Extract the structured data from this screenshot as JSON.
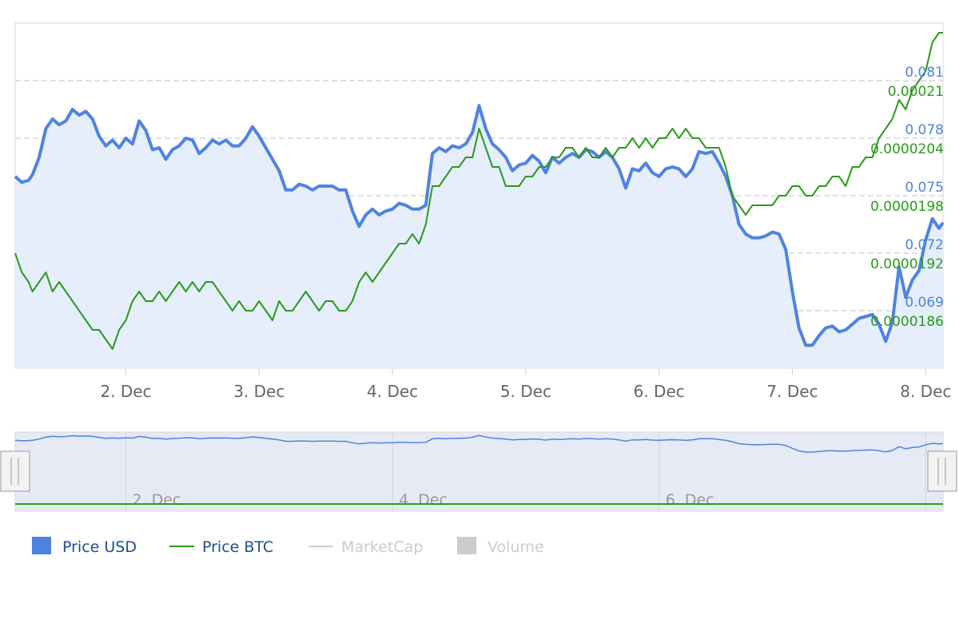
{
  "chart_data": {
    "type": "line",
    "x_ticks": [
      "2. Dec",
      "3. Dec",
      "4. Dec",
      "5. Dec",
      "6. Dec",
      "7. Dec",
      "8. Dec"
    ],
    "navigator_ticks": [
      "2. Dec",
      "4. Dec",
      "6. Dec"
    ],
    "y_axes": {
      "usd": {
        "ticks": [
          "0.081",
          "0.078",
          "0.075",
          "0.072",
          "0.069"
        ],
        "range": [
          0.066,
          0.084
        ]
      },
      "btc": {
        "ticks": [
          "0.00021",
          "0.0000204",
          "0.0000198",
          "0.0000192",
          "0.0000186"
        ],
        "range": [
          1.8e-05,
          2.16e-05
        ]
      }
    },
    "x_range": [
      1.17,
      8.13
    ],
    "grid": true,
    "legend_position": "bottom-left",
    "colors": {
      "usd": "#4f83e0",
      "btc": "#2a9a1a",
      "usd_area": "#e6eefb",
      "grid": "#d6d6d6"
    },
    "series": [
      {
        "name": "Price USD",
        "axis": "usd",
        "points": [
          [
            1.17,
            0.076
          ],
          [
            1.22,
            0.0757
          ],
          [
            1.27,
            0.0758
          ],
          [
            1.3,
            0.0761
          ],
          [
            1.35,
            0.077
          ],
          [
            1.4,
            0.0785
          ],
          [
            1.45,
            0.079
          ],
          [
            1.5,
            0.0787
          ],
          [
            1.55,
            0.0789
          ],
          [
            1.6,
            0.0795
          ],
          [
            1.65,
            0.0792
          ],
          [
            1.7,
            0.0794
          ],
          [
            1.75,
            0.079
          ],
          [
            1.8,
            0.0781
          ],
          [
            1.85,
            0.0776
          ],
          [
            1.9,
            0.0779
          ],
          [
            1.95,
            0.0775
          ],
          [
            2.0,
            0.078
          ],
          [
            2.05,
            0.0777
          ],
          [
            2.1,
            0.0789
          ],
          [
            2.15,
            0.0784
          ],
          [
            2.2,
            0.0774
          ],
          [
            2.25,
            0.0775
          ],
          [
            2.3,
            0.0769
          ],
          [
            2.35,
            0.0774
          ],
          [
            2.4,
            0.0776
          ],
          [
            2.45,
            0.078
          ],
          [
            2.5,
            0.0779
          ],
          [
            2.55,
            0.0772
          ],
          [
            2.6,
            0.0775
          ],
          [
            2.65,
            0.0779
          ],
          [
            2.7,
            0.0777
          ],
          [
            2.75,
            0.0779
          ],
          [
            2.8,
            0.0776
          ],
          [
            2.85,
            0.0776
          ],
          [
            2.9,
            0.078
          ],
          [
            2.95,
            0.0786
          ],
          [
            3.0,
            0.0781
          ],
          [
            3.05,
            0.0775
          ],
          [
            3.1,
            0.0769
          ],
          [
            3.15,
            0.0763
          ],
          [
            3.2,
            0.0753
          ],
          [
            3.25,
            0.0753
          ],
          [
            3.3,
            0.0756
          ],
          [
            3.35,
            0.0755
          ],
          [
            3.4,
            0.0753
          ],
          [
            3.45,
            0.0755
          ],
          [
            3.5,
            0.0755
          ],
          [
            3.55,
            0.0755
          ],
          [
            3.6,
            0.0753
          ],
          [
            3.65,
            0.0753
          ],
          [
            3.7,
            0.0742
          ],
          [
            3.75,
            0.0734
          ],
          [
            3.8,
            0.074
          ],
          [
            3.85,
            0.0743
          ],
          [
            3.9,
            0.074
          ],
          [
            3.95,
            0.0742
          ],
          [
            4.0,
            0.0743
          ],
          [
            4.05,
            0.0746
          ],
          [
            4.1,
            0.0745
          ],
          [
            4.15,
            0.0743
          ],
          [
            4.2,
            0.0743
          ],
          [
            4.25,
            0.0745
          ],
          [
            4.3,
            0.0772
          ],
          [
            4.35,
            0.0775
          ],
          [
            4.4,
            0.0773
          ],
          [
            4.45,
            0.0776
          ],
          [
            4.5,
            0.0775
          ],
          [
            4.55,
            0.0777
          ],
          [
            4.6,
            0.0783
          ],
          [
            4.65,
            0.0797
          ],
          [
            4.7,
            0.0785
          ],
          [
            4.75,
            0.0777
          ],
          [
            4.8,
            0.0774
          ],
          [
            4.85,
            0.077
          ],
          [
            4.9,
            0.0763
          ],
          [
            4.95,
            0.0766
          ],
          [
            5.0,
            0.0767
          ],
          [
            5.05,
            0.0771
          ],
          [
            5.1,
            0.0768
          ],
          [
            5.15,
            0.0762
          ],
          [
            5.2,
            0.077
          ],
          [
            5.25,
            0.0767
          ],
          [
            5.3,
            0.077
          ],
          [
            5.35,
            0.0772
          ],
          [
            5.4,
            0.077
          ],
          [
            5.45,
            0.0774
          ],
          [
            5.5,
            0.0773
          ],
          [
            5.55,
            0.077
          ],
          [
            5.6,
            0.0773
          ],
          [
            5.65,
            0.077
          ],
          [
            5.7,
            0.0764
          ],
          [
            5.75,
            0.0754
          ],
          [
            5.8,
            0.0764
          ],
          [
            5.85,
            0.0763
          ],
          [
            5.9,
            0.0767
          ],
          [
            5.95,
            0.0762
          ],
          [
            6.0,
            0.076
          ],
          [
            6.05,
            0.0764
          ],
          [
            6.1,
            0.0765
          ],
          [
            6.15,
            0.0764
          ],
          [
            6.2,
            0.076
          ],
          [
            6.25,
            0.0764
          ],
          [
            6.3,
            0.0773
          ],
          [
            6.35,
            0.0772
          ],
          [
            6.4,
            0.0773
          ],
          [
            6.45,
            0.0767
          ],
          [
            6.5,
            0.076
          ],
          [
            6.55,
            0.075
          ],
          [
            6.6,
            0.0735
          ],
          [
            6.65,
            0.073
          ],
          [
            6.7,
            0.0728
          ],
          [
            6.75,
            0.0728
          ],
          [
            6.8,
            0.0729
          ],
          [
            6.85,
            0.0731
          ],
          [
            6.9,
            0.073
          ],
          [
            6.95,
            0.0722
          ],
          [
            7.0,
            0.07
          ],
          [
            7.05,
            0.0681
          ],
          [
            7.1,
            0.0672
          ],
          [
            7.15,
            0.0672
          ],
          [
            7.2,
            0.0677
          ],
          [
            7.25,
            0.0681
          ],
          [
            7.3,
            0.0682
          ],
          [
            7.35,
            0.0679
          ],
          [
            7.4,
            0.068
          ],
          [
            7.45,
            0.0683
          ],
          [
            7.5,
            0.0686
          ],
          [
            7.55,
            0.0687
          ],
          [
            7.6,
            0.0688
          ],
          [
            7.65,
            0.0683
          ],
          [
            7.7,
            0.0674
          ],
          [
            7.75,
            0.0684
          ],
          [
            7.8,
            0.0713
          ],
          [
            7.85,
            0.0697
          ],
          [
            7.9,
            0.0706
          ],
          [
            7.95,
            0.0711
          ],
          [
            8.0,
            0.0727
          ],
          [
            8.05,
            0.0738
          ],
          [
            8.1,
            0.0733
          ],
          [
            8.13,
            0.0736
          ]
        ]
      },
      {
        "name": "Price BTC",
        "axis": "btc",
        "points": [
          [
            1.17,
            1.92e-05
          ],
          [
            1.22,
            1.9e-05
          ],
          [
            1.27,
            1.89e-05
          ],
          [
            1.3,
            1.88e-05
          ],
          [
            1.35,
            1.89e-05
          ],
          [
            1.4,
            1.9e-05
          ],
          [
            1.45,
            1.88e-05
          ],
          [
            1.5,
            1.89e-05
          ],
          [
            1.55,
            1.88e-05
          ],
          [
            1.6,
            1.87e-05
          ],
          [
            1.65,
            1.86e-05
          ],
          [
            1.7,
            1.85e-05
          ],
          [
            1.75,
            1.84e-05
          ],
          [
            1.8,
            1.84e-05
          ],
          [
            1.85,
            1.83e-05
          ],
          [
            1.9,
            1.82e-05
          ],
          [
            1.95,
            1.84e-05
          ],
          [
            2.0,
            1.85e-05
          ],
          [
            2.05,
            1.87e-05
          ],
          [
            2.1,
            1.88e-05
          ],
          [
            2.15,
            1.87e-05
          ],
          [
            2.2,
            1.87e-05
          ],
          [
            2.25,
            1.88e-05
          ],
          [
            2.3,
            1.87e-05
          ],
          [
            2.35,
            1.88e-05
          ],
          [
            2.4,
            1.89e-05
          ],
          [
            2.45,
            1.88e-05
          ],
          [
            2.5,
            1.89e-05
          ],
          [
            2.55,
            1.88e-05
          ],
          [
            2.6,
            1.89e-05
          ],
          [
            2.65,
            1.89e-05
          ],
          [
            2.7,
            1.88e-05
          ],
          [
            2.75,
            1.87e-05
          ],
          [
            2.8,
            1.86e-05
          ],
          [
            2.85,
            1.87e-05
          ],
          [
            2.9,
            1.86e-05
          ],
          [
            2.95,
            1.86e-05
          ],
          [
            3.0,
            1.87e-05
          ],
          [
            3.05,
            1.86e-05
          ],
          [
            3.1,
            1.85e-05
          ],
          [
            3.15,
            1.87e-05
          ],
          [
            3.2,
            1.86e-05
          ],
          [
            3.25,
            1.86e-05
          ],
          [
            3.3,
            1.87e-05
          ],
          [
            3.35,
            1.88e-05
          ],
          [
            3.4,
            1.87e-05
          ],
          [
            3.45,
            1.86e-05
          ],
          [
            3.5,
            1.87e-05
          ],
          [
            3.55,
            1.87e-05
          ],
          [
            3.6,
            1.86e-05
          ],
          [
            3.65,
            1.86e-05
          ],
          [
            3.7,
            1.87e-05
          ],
          [
            3.75,
            1.89e-05
          ],
          [
            3.8,
            1.9e-05
          ],
          [
            3.85,
            1.89e-05
          ],
          [
            3.9,
            1.9e-05
          ],
          [
            3.95,
            1.91e-05
          ],
          [
            4.0,
            1.92e-05
          ],
          [
            4.05,
            1.93e-05
          ],
          [
            4.1,
            1.93e-05
          ],
          [
            4.15,
            1.94e-05
          ],
          [
            4.2,
            1.93e-05
          ],
          [
            4.25,
            1.95e-05
          ],
          [
            4.3,
            1.99e-05
          ],
          [
            4.35,
            1.99e-05
          ],
          [
            4.4,
            2e-05
          ],
          [
            4.45,
            2.01e-05
          ],
          [
            4.5,
            2.01e-05
          ],
          [
            4.55,
            2.02e-05
          ],
          [
            4.6,
            2.02e-05
          ],
          [
            4.65,
            2.05e-05
          ],
          [
            4.7,
            2.03e-05
          ],
          [
            4.75,
            2.01e-05
          ],
          [
            4.8,
            2.01e-05
          ],
          [
            4.85,
            1.99e-05
          ],
          [
            4.9,
            1.99e-05
          ],
          [
            4.95,
            1.99e-05
          ],
          [
            5.0,
            2e-05
          ],
          [
            5.05,
            2e-05
          ],
          [
            5.1,
            2.01e-05
          ],
          [
            5.15,
            2.01e-05
          ],
          [
            5.2,
            2.02e-05
          ],
          [
            5.25,
            2.02e-05
          ],
          [
            5.3,
            2.03e-05
          ],
          [
            5.35,
            2.03e-05
          ],
          [
            5.4,
            2.02e-05
          ],
          [
            5.45,
            2.03e-05
          ],
          [
            5.5,
            2.02e-05
          ],
          [
            5.55,
            2.02e-05
          ],
          [
            5.6,
            2.03e-05
          ],
          [
            5.65,
            2.02e-05
          ],
          [
            5.7,
            2.03e-05
          ],
          [
            5.75,
            2.03e-05
          ],
          [
            5.8,
            2.04e-05
          ],
          [
            5.85,
            2.03e-05
          ],
          [
            5.9,
            2.04e-05
          ],
          [
            5.95,
            2.03e-05
          ],
          [
            6.0,
            2.04e-05
          ],
          [
            6.05,
            2.04e-05
          ],
          [
            6.1,
            2.05e-05
          ],
          [
            6.15,
            2.04e-05
          ],
          [
            6.2,
            2.05e-05
          ],
          [
            6.25,
            2.04e-05
          ],
          [
            6.3,
            2.04e-05
          ],
          [
            6.35,
            2.03e-05
          ],
          [
            6.4,
            2.03e-05
          ],
          [
            6.45,
            2.03e-05
          ],
          [
            6.5,
            2.01e-05
          ],
          [
            6.55,
            1.98e-05
          ],
          [
            6.6,
            1.97e-05
          ],
          [
            6.65,
            1.96e-05
          ],
          [
            6.7,
            1.97e-05
          ],
          [
            6.75,
            1.97e-05
          ],
          [
            6.8,
            1.97e-05
          ],
          [
            6.85,
            1.97e-05
          ],
          [
            6.9,
            1.98e-05
          ],
          [
            6.95,
            1.98e-05
          ],
          [
            7.0,
            1.99e-05
          ],
          [
            7.05,
            1.99e-05
          ],
          [
            7.1,
            1.98e-05
          ],
          [
            7.15,
            1.98e-05
          ],
          [
            7.2,
            1.99e-05
          ],
          [
            7.25,
            1.99e-05
          ],
          [
            7.3,
            2e-05
          ],
          [
            7.35,
            2e-05
          ],
          [
            7.4,
            1.99e-05
          ],
          [
            7.45,
            2.01e-05
          ],
          [
            7.5,
            2.01e-05
          ],
          [
            7.55,
            2.02e-05
          ],
          [
            7.6,
            2.02e-05
          ],
          [
            7.65,
            2.04e-05
          ],
          [
            7.7,
            2.05e-05
          ],
          [
            7.75,
            2.06e-05
          ],
          [
            7.8,
            2.08e-05
          ],
          [
            7.85,
            2.07e-05
          ],
          [
            7.9,
            2.09e-05
          ],
          [
            7.95,
            2.1e-05
          ],
          [
            8.0,
            2.11e-05
          ],
          [
            8.05,
            2.14e-05
          ],
          [
            8.1,
            2.15e-05
          ],
          [
            8.13,
            2.15e-05
          ]
        ]
      }
    ],
    "legend": [
      {
        "name": "Price USD",
        "color": "#4f83e0",
        "marker": "square",
        "active": true
      },
      {
        "name": "Price BTC",
        "color": "#2a9a1a",
        "marker": "line",
        "active": true
      },
      {
        "name": "MarketCap",
        "color": "#cccccc",
        "marker": "line",
        "active": false
      },
      {
        "name": "Volume",
        "color": "#cccccc",
        "marker": "square",
        "active": false
      }
    ]
  }
}
